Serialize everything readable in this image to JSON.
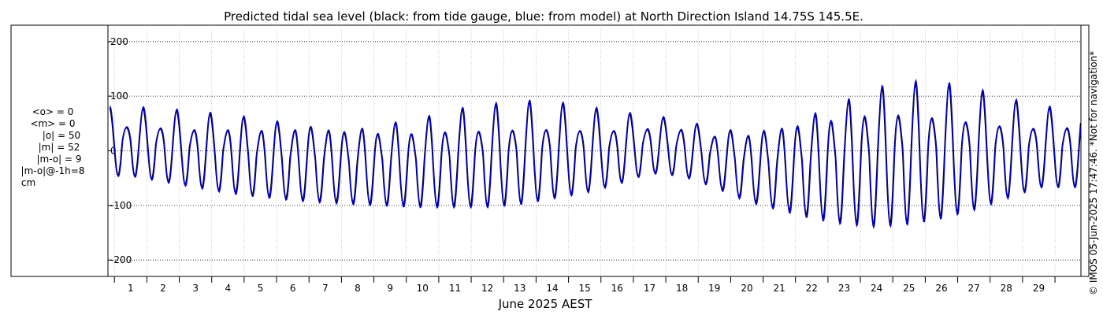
{
  "chart_data": {
    "type": "line",
    "title": "Predicted tidal sea level (black: from tide gauge, blue: from model) at North Direction Island 14.75S 145.5E.",
    "xlabel": "June 2025 AEST",
    "x_ticks": [
      "1",
      "2",
      "3",
      "4",
      "5",
      "6",
      "7",
      "8",
      "9",
      "10",
      "11",
      "12",
      "13",
      "14",
      "15",
      "16",
      "17",
      "18",
      "19",
      "20",
      "21",
      "22",
      "23",
      "24",
      "25",
      "26",
      "27",
      "28",
      "29"
    ],
    "y_ticks": [
      200,
      100,
      0,
      -100,
      -200
    ],
    "ylim": [
      -230,
      230
    ],
    "xlim": [
      0.3,
      30.3
    ],
    "grid": true,
    "stats": [
      "<o> = 0",
      "<m> = 0",
      "|o| = 50",
      "|m| = 52",
      "|m-o| = 9",
      "|m-o|@-1h=8",
      "cm"
    ],
    "credit": "© IMOS 05-Jun-2025 17:47:46. *Not for navigation*",
    "series_params": {
      "days": [
        1,
        2,
        3,
        4,
        5,
        6,
        7,
        8,
        9,
        10,
        11,
        12,
        13,
        14,
        15,
        16,
        17,
        18,
        19,
        20,
        21,
        22,
        23,
        24,
        25,
        26,
        27,
        28,
        29
      ],
      "highs": [
        78,
        77,
        73,
        72,
        67,
        64,
        58,
        55,
        62,
        68,
        80,
        85,
        90,
        88,
        80,
        72,
        66,
        62,
        48,
        50,
        60,
        85,
        105,
        125,
        130,
        125,
        112,
        95,
        80
      ],
      "lows": [
        -45,
        -55,
        -65,
        -75,
        -82,
        -88,
        -92,
        -95,
        -98,
        -100,
        -100,
        -100,
        -95,
        -85,
        -75,
        -60,
        -40,
        -45,
        -65,
        -90,
        -105,
        -120,
        -130,
        -135,
        -130,
        -120,
        -105,
        -85,
        -65
      ]
    },
    "series": [
      {
        "name": "tide gauge",
        "color": "#000000"
      },
      {
        "name": "model",
        "color": "#0000cc"
      }
    ]
  }
}
